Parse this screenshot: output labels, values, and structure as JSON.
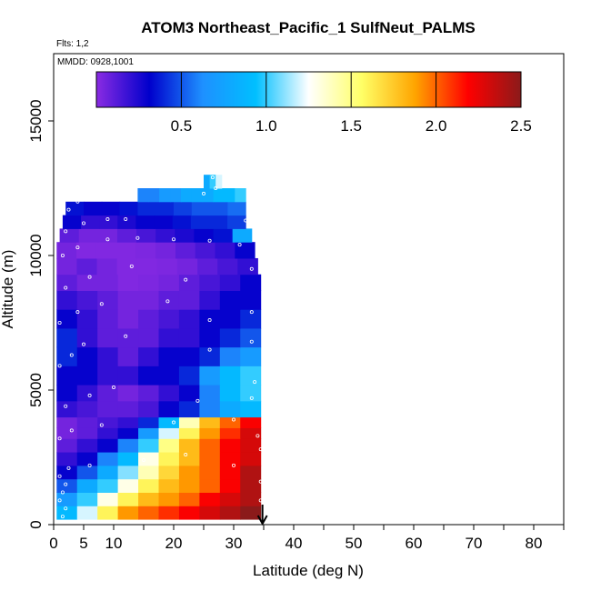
{
  "chart_data": {
    "type": "heatmap",
    "title": "ATOM3 Northeast_Pacific_1 SulfNeut_PALMS",
    "flights_note": "Flts: 1,2",
    "date_note": "MMDD: 0928,1001",
    "xlabel": "Latitude (deg N)",
    "ylabel": "Altitude (m)",
    "xlim": [
      0,
      85
    ],
    "ylim": [
      0,
      17500
    ],
    "x_ticks": [
      0,
      5,
      10,
      20,
      30,
      40,
      50,
      60,
      70,
      80
    ],
    "y_ticks": [
      0,
      5000,
      10000,
      15000
    ],
    "colorbar": {
      "range": [
        0,
        2.5
      ],
      "ticks": [
        "0.5",
        "1.0",
        "1.5",
        "2.0",
        "2.5"
      ],
      "colors": [
        "#8a2be2",
        "#0000cc",
        "#1e90ff",
        "#00bfff",
        "#ffffff",
        "#ffff66",
        "#ffa500",
        "#ff0000",
        "#8b1a1a"
      ]
    },
    "marker": {
      "lat": 34.8,
      "symbol": "down-arrow"
    },
    "grid": false,
    "bands": [
      {
        "alt": [
          200,
          700
        ],
        "lat": [
          0.5,
          34.5
        ],
        "values": [
          0.9,
          1.2,
          1.6,
          1.9,
          2.0,
          2.1,
          2.2,
          2.3,
          2.4,
          2.5
        ]
      },
      {
        "alt": [
          700,
          1200
        ],
        "lat": [
          0.5,
          34.5
        ],
        "values": [
          0.7,
          1.0,
          1.3,
          1.6,
          1.8,
          1.9,
          2.0,
          2.2,
          2.3,
          2.4
        ]
      },
      {
        "alt": [
          1200,
          1700
        ],
        "lat": [
          0.5,
          34.5
        ],
        "values": [
          0.5,
          0.8,
          1.0,
          1.3,
          1.6,
          1.8,
          1.9,
          2.0,
          2.2,
          2.4
        ]
      },
      {
        "alt": [
          1700,
          2200
        ],
        "lat": [
          0.5,
          34.5
        ],
        "values": [
          0.3,
          0.5,
          0.8,
          1.1,
          1.4,
          1.7,
          1.9,
          2.0,
          2.2,
          2.4
        ]
      },
      {
        "alt": [
          2200,
          2700
        ],
        "lat": [
          0.5,
          34.5
        ],
        "values": [
          0.2,
          0.3,
          0.6,
          0.9,
          1.3,
          1.6,
          1.8,
          2.0,
          2.2,
          2.3
        ]
      },
      {
        "alt": [
          2700,
          3200
        ],
        "lat": [
          0.5,
          34.5
        ],
        "values": [
          0.1,
          0.2,
          0.3,
          0.6,
          1.0,
          1.5,
          1.8,
          2.0,
          2.2,
          2.3
        ]
      },
      {
        "alt": [
          3200,
          3600
        ],
        "lat": [
          0.5,
          34.5
        ],
        "values": [
          0.05,
          0.1,
          0.2,
          0.3,
          0.7,
          1.2,
          1.6,
          1.9,
          2.1,
          2.3
        ]
      },
      {
        "alt": [
          3600,
          4000
        ],
        "lat": [
          0.5,
          34.5
        ],
        "values": [
          0.05,
          0.1,
          0.15,
          0.2,
          0.4,
          0.9,
          1.4,
          1.8,
          2.0,
          2.2
        ]
      },
      {
        "alt": [
          4000,
          4600
        ],
        "lat": [
          0.5,
          34.5
        ],
        "values": [
          0.2,
          0.15,
          0.1,
          0.1,
          0.15,
          0.3,
          0.4,
          0.6,
          0.8,
          0.9
        ]
      },
      {
        "alt": [
          4600,
          5200
        ],
        "lat": [
          0.5,
          34.5
        ],
        "values": [
          0.3,
          0.2,
          0.1,
          0.05,
          0.1,
          0.2,
          0.3,
          0.6,
          0.9,
          1.0
        ]
      },
      {
        "alt": [
          5200,
          5900
        ],
        "lat": [
          0.5,
          34.5
        ],
        "values": [
          0.3,
          0.3,
          0.2,
          0.2,
          0.3,
          0.3,
          0.4,
          0.7,
          0.9,
          1.0
        ]
      },
      {
        "alt": [
          5900,
          6600
        ],
        "lat": [
          0.5,
          34.5
        ],
        "values": [
          0.4,
          0.3,
          0.2,
          0.1,
          0.2,
          0.3,
          0.3,
          0.4,
          0.6,
          0.7
        ]
      },
      {
        "alt": [
          6600,
          7300
        ],
        "lat": [
          0.5,
          34.5
        ],
        "values": [
          0.4,
          0.2,
          0.1,
          0.1,
          0.1,
          0.2,
          0.2,
          0.3,
          0.4,
          0.5
        ]
      },
      {
        "alt": [
          7300,
          8000
        ],
        "lat": [
          0.5,
          34.5
        ],
        "values": [
          0.3,
          0.2,
          0.1,
          0.05,
          0.1,
          0.15,
          0.2,
          0.3,
          0.3,
          0.4
        ]
      },
      {
        "alt": [
          8000,
          8700
        ],
        "lat": [
          0.5,
          34.5
        ],
        "values": [
          0.2,
          0.15,
          0.1,
          0.05,
          0.05,
          0.1,
          0.1,
          0.2,
          0.3,
          0.3
        ]
      },
      {
        "alt": [
          8700,
          9300
        ],
        "lat": [
          0.5,
          34.5
        ],
        "values": [
          0.1,
          0.05,
          0.05,
          0.02,
          0.03,
          0.05,
          0.1,
          0.15,
          0.2,
          0.3
        ]
      },
      {
        "alt": [
          9300,
          9900
        ],
        "lat": [
          0.5,
          34
        ],
        "values": [
          0.05,
          0.1,
          0.05,
          0.02,
          0.02,
          0.03,
          0.05,
          0.1,
          0.15,
          0.2
        ]
      },
      {
        "alt": [
          9900,
          10500
        ],
        "lat": [
          0.5,
          33.5
        ],
        "values": [
          0.05,
          0.02,
          0.02,
          0.02,
          0.03,
          0.05,
          0.1,
          0.15,
          0.2,
          0.3
        ]
      },
      {
        "alt": [
          10500,
          11000
        ],
        "lat": [
          1,
          33
        ],
        "values": [
          0.1,
          0.05,
          0.05,
          0.1,
          0.15,
          0.2,
          0.25,
          0.3,
          0.35,
          0.8
        ]
      },
      {
        "alt": [
          11000,
          11500
        ],
        "lat": [
          1.5,
          32
        ],
        "values": [
          0.3,
          0.2,
          0.2,
          0.25,
          0.3,
          0.3,
          0.35,
          0.4,
          0.4,
          0.45
        ]
      },
      {
        "alt": [
          11500,
          12000
        ],
        "lat": [
          2,
          32
        ],
        "values": [
          0.35,
          0.3,
          0.3,
          0.35,
          0.4,
          0.4,
          0.45,
          0.5,
          0.5,
          0.55
        ]
      },
      {
        "alt": [
          12000,
          12500
        ],
        "lat": [
          14,
          32
        ],
        "values": [
          0.6,
          0.6,
          0.7,
          0.7,
          0.8,
          0.8,
          0.8,
          0.9,
          0.9,
          1.0
        ]
      },
      {
        "alt": [
          12500,
          13000
        ],
        "lat": [
          25,
          28
        ],
        "values": [
          0.8,
          1.0,
          1.2
        ]
      }
    ],
    "points": [
      [
        1.5,
        300
      ],
      [
        2,
        600
      ],
      [
        1,
        900
      ],
      [
        1.5,
        1200
      ],
      [
        2,
        1500
      ],
      [
        1,
        1800
      ],
      [
        2.5,
        2100
      ],
      [
        6,
        2200
      ],
      [
        15,
        2400
      ],
      [
        22,
        2600
      ],
      [
        30,
        2200
      ],
      [
        34.5,
        1600
      ],
      [
        34.5,
        900
      ],
      [
        34.5,
        2800
      ],
      [
        1,
        3200
      ],
      [
        3,
        3500
      ],
      [
        8,
        3700
      ],
      [
        20,
        3800
      ],
      [
        30,
        3900
      ],
      [
        34,
        3300
      ],
      [
        2,
        4400
      ],
      [
        6,
        4800
      ],
      [
        10,
        5100
      ],
      [
        24,
        4600
      ],
      [
        33,
        4700
      ],
      [
        33.5,
        5300
      ],
      [
        1,
        5900
      ],
      [
        3,
        6300
      ],
      [
        5,
        6700
      ],
      [
        12,
        7000
      ],
      [
        26,
        6500
      ],
      [
        33,
        6800
      ],
      [
        1,
        7500
      ],
      [
        4,
        7900
      ],
      [
        8,
        8200
      ],
      [
        19,
        8300
      ],
      [
        26,
        7600
      ],
      [
        33,
        7900
      ],
      [
        2,
        8800
      ],
      [
        6,
        9200
      ],
      [
        13,
        9600
      ],
      [
        22,
        9100
      ],
      [
        33,
        9500
      ],
      [
        1.5,
        10000
      ],
      [
        4,
        10300
      ],
      [
        9,
        10600
      ],
      [
        14,
        10650
      ],
      [
        20,
        10600
      ],
      [
        26,
        10550
      ],
      [
        31,
        10400
      ],
      [
        2,
        10900
      ],
      [
        5,
        11200
      ],
      [
        9,
        11350
      ],
      [
        12,
        11350
      ],
      [
        32,
        11300
      ],
      [
        2.5,
        11700
      ],
      [
        4,
        12000
      ],
      [
        25,
        12300
      ],
      [
        27,
        12500
      ],
      [
        29,
        12600
      ],
      [
        26.5,
        12900
      ]
    ]
  }
}
